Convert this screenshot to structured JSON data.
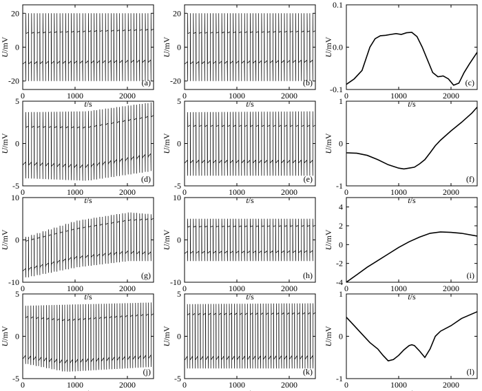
{
  "figure": {
    "x_tick_labels": [
      "0",
      "1000",
      "2000"
    ],
    "xlabel_var": "t",
    "xlabel_unit": "/s",
    "ylabel_var": "U",
    "ylabel_unit": "/mV"
  },
  "chart_data": [
    {
      "id": "a",
      "label": "(a)",
      "type": "line",
      "kind": "spikes",
      "xlim": [
        0,
        2500
      ],
      "ylim": [
        -25,
        25
      ],
      "y_ticks": [
        -20,
        0,
        20
      ],
      "y_tick_labels": [
        "-20",
        "0",
        "20"
      ],
      "series": [
        {
          "name": "U",
          "spike_count": 23,
          "upper_level": [
            [
              0,
              8
            ],
            [
              2500,
              10
            ]
          ],
          "lower_level": [
            [
              0,
              -10
            ],
            [
              2500,
              -9
            ]
          ],
          "peak": [
            [
              0,
              20
            ],
            [
              2500,
              20
            ]
          ],
          "trough": [
            [
              0,
              -20
            ],
            [
              2500,
              -20
            ]
          ]
        }
      ]
    },
    {
      "id": "b",
      "label": "(b)",
      "type": "line",
      "kind": "spikes",
      "xlim": [
        0,
        2500
      ],
      "ylim": [
        -25,
        25
      ],
      "y_ticks": [
        -20,
        0,
        20
      ],
      "y_tick_labels": [
        "-20",
        "0",
        "20"
      ],
      "series": [
        {
          "name": "U",
          "spike_count": 23,
          "upper_level": [
            [
              0,
              8
            ],
            [
              2500,
              9
            ]
          ],
          "lower_level": [
            [
              0,
              -10
            ],
            [
              2500,
              -9
            ]
          ],
          "peak": [
            [
              0,
              20
            ],
            [
              2500,
              20
            ]
          ],
          "trough": [
            [
              0,
              -20
            ],
            [
              2500,
              -20
            ]
          ]
        }
      ]
    },
    {
      "id": "c",
      "label": "(c)",
      "type": "line",
      "kind": "curve",
      "xlim": [
        0,
        2500
      ],
      "ylim": [
        -0.1,
        0.1
      ],
      "y_ticks": [
        -0.1,
        0,
        0.1
      ],
      "y_tick_labels": [
        "-0.1",
        "0.0",
        "0.1"
      ],
      "series": [
        {
          "name": "U",
          "x": [
            0,
            150,
            300,
            450,
            550,
            650,
            750,
            850,
            950,
            1050,
            1150,
            1250,
            1350,
            1450,
            1550,
            1650,
            1750,
            1850,
            1950,
            2050,
            2150,
            2250,
            2350,
            2500
          ],
          "y": [
            -0.088,
            -0.075,
            -0.055,
            0.0,
            0.02,
            0.027,
            0.028,
            0.03,
            0.032,
            0.03,
            0.034,
            0.035,
            0.025,
            0.0,
            -0.03,
            -0.06,
            -0.07,
            -0.068,
            -0.075,
            -0.09,
            -0.085,
            -0.06,
            -0.04,
            -0.012
          ]
        }
      ]
    },
    {
      "id": "d",
      "label": "(d)",
      "type": "line",
      "kind": "spikes",
      "xlim": [
        0,
        2500
      ],
      "ylim": [
        -5,
        5
      ],
      "y_ticks": [
        -5,
        0,
        5
      ],
      "y_tick_labels": [
        "-5",
        "0",
        "5"
      ],
      "series": [
        {
          "name": "U",
          "spike_count": 23,
          "upper_level": [
            [
              0,
              1.9
            ],
            [
              1200,
              1.8
            ],
            [
              2500,
              3.2
            ]
          ],
          "lower_level": [
            [
              0,
              -2.5
            ],
            [
              1200,
              -2.9
            ],
            [
              2500,
              -1.5
            ]
          ],
          "peak": [
            [
              0,
              3.7
            ],
            [
              1200,
              3.8
            ],
            [
              2500,
              4.9
            ]
          ],
          "trough": [
            [
              0,
              -4.1
            ],
            [
              1200,
              -4.4
            ],
            [
              2500,
              -3.2
            ]
          ]
        }
      ]
    },
    {
      "id": "e",
      "label": "(e)",
      "type": "line",
      "kind": "spikes",
      "xlim": [
        0,
        2500
      ],
      "ylim": [
        -5,
        5
      ],
      "y_ticks": [
        -5,
        0,
        5
      ],
      "y_tick_labels": [
        "-5",
        "0",
        "5"
      ],
      "series": [
        {
          "name": "U",
          "spike_count": 23,
          "upper_level": [
            [
              0,
              2.0
            ],
            [
              2500,
              2.0
            ]
          ],
          "lower_level": [
            [
              0,
              -2.3
            ],
            [
              2500,
              -2.3
            ]
          ],
          "peak": [
            [
              0,
              3.7
            ],
            [
              2500,
              3.8
            ]
          ],
          "trough": [
            [
              0,
              -3.8
            ],
            [
              2500,
              -3.8
            ]
          ]
        }
      ]
    },
    {
      "id": "f",
      "label": "(f)",
      "type": "line",
      "kind": "curve",
      "xlim": [
        0,
        2500
      ],
      "ylim": [
        -1,
        1
      ],
      "y_ticks": [
        -1,
        0,
        1
      ],
      "y_tick_labels": [
        "-1",
        "0",
        "1"
      ],
      "series": [
        {
          "name": "U",
          "x": [
            0,
            200,
            400,
            600,
            800,
            1000,
            1100,
            1200,
            1300,
            1400,
            1500,
            1600,
            1700,
            1800,
            2000,
            2200,
            2400,
            2500
          ],
          "y": [
            -0.22,
            -0.23,
            -0.28,
            -0.38,
            -0.5,
            -0.58,
            -0.6,
            -0.58,
            -0.56,
            -0.48,
            -0.38,
            -0.22,
            -0.05,
            0.08,
            0.3,
            0.5,
            0.72,
            0.86
          ]
        }
      ]
    },
    {
      "id": "g",
      "label": "(g)",
      "type": "line",
      "kind": "spikes",
      "xlim": [
        0,
        2500
      ],
      "ylim": [
        -10,
        10
      ],
      "y_ticks": [
        -10,
        0,
        10
      ],
      "y_tick_labels": [
        "-10",
        "0",
        "10"
      ],
      "series": [
        {
          "name": "U",
          "spike_count": 23,
          "upper_level": [
            [
              0,
              -0.5
            ],
            [
              1000,
              2.5
            ],
            [
              2000,
              4.5
            ],
            [
              2500,
              4.8
            ]
          ],
          "lower_level": [
            [
              0,
              -7.5
            ],
            [
              1000,
              -4.5
            ],
            [
              2000,
              -3.2
            ],
            [
              2500,
              -3.5
            ]
          ],
          "peak": [
            [
              0,
              0.5
            ],
            [
              1000,
              4.5
            ],
            [
              2000,
              6.5
            ],
            [
              2500,
              6.0
            ]
          ],
          "trough": [
            [
              0,
              -9.0
            ],
            [
              1000,
              -6.5
            ],
            [
              2000,
              -5.0
            ],
            [
              2500,
              -5.0
            ]
          ]
        }
      ]
    },
    {
      "id": "h",
      "label": "(h)",
      "type": "line",
      "kind": "spikes",
      "xlim": [
        0,
        2500
      ],
      "ylim": [
        -10,
        10
      ],
      "y_ticks": [
        -10,
        0,
        10
      ],
      "y_tick_labels": [
        "-10",
        "0",
        "10"
      ],
      "series": [
        {
          "name": "U",
          "spike_count": 23,
          "upper_level": [
            [
              0,
              3.0
            ],
            [
              2500,
              3.2
            ]
          ],
          "lower_level": [
            [
              0,
              -3.2
            ],
            [
              2500,
              -3.0
            ]
          ],
          "peak": [
            [
              0,
              5.0
            ],
            [
              2500,
              5.0
            ]
          ],
          "trough": [
            [
              0,
              -5.0
            ],
            [
              2500,
              -5.0
            ]
          ]
        }
      ]
    },
    {
      "id": "i",
      "label": "(i)",
      "type": "line",
      "kind": "curve",
      "xlim": [
        0,
        2500
      ],
      "ylim": [
        -4,
        5
      ],
      "y_ticks": [
        -4,
        -2,
        0,
        2,
        4
      ],
      "y_tick_labels": [
        "-4",
        "-2",
        "0",
        "2",
        "4"
      ],
      "series": [
        {
          "name": "U",
          "x": [
            0,
            200,
            400,
            600,
            800,
            1000,
            1200,
            1400,
            1600,
            1800,
            2000,
            2200,
            2500
          ],
          "y": [
            -4.0,
            -3.2,
            -2.4,
            -1.7,
            -1.0,
            -0.3,
            0.3,
            0.8,
            1.2,
            1.35,
            1.3,
            1.2,
            0.9
          ]
        }
      ]
    },
    {
      "id": "j",
      "label": "(j)",
      "type": "line",
      "kind": "spikes",
      "xlim": [
        0,
        2500
      ],
      "ylim": [
        -5,
        5
      ],
      "y_ticks": [
        -5,
        0,
        5
      ],
      "y_tick_labels": [
        "-5",
        "0",
        "5"
      ],
      "series": [
        {
          "name": "U",
          "spike_count": 25,
          "upper_level": [
            [
              0,
              2.2
            ],
            [
              800,
              1.8
            ],
            [
              2500,
              2.5
            ]
          ],
          "lower_level": [
            [
              0,
              -2.6
            ],
            [
              800,
              -3.2
            ],
            [
              2500,
              -2.6
            ]
          ],
          "peak": [
            [
              0,
              3.6
            ],
            [
              2500,
              4.0
            ]
          ],
          "trough": [
            [
              0,
              -3.2
            ],
            [
              800,
              -4.2
            ],
            [
              2500,
              -3.6
            ]
          ]
        }
      ]
    },
    {
      "id": "k",
      "label": "(k)",
      "type": "line",
      "kind": "spikes",
      "xlim": [
        0,
        2500
      ],
      "ylim": [
        -5,
        5
      ],
      "y_ticks": [
        -5,
        0,
        5
      ],
      "y_tick_labels": [
        "-5",
        "0",
        "5"
      ],
      "series": [
        {
          "name": "U",
          "spike_count": 25,
          "upper_level": [
            [
              0,
              2.5
            ],
            [
              2500,
              2.6
            ]
          ],
          "lower_level": [
            [
              0,
              -2.8
            ],
            [
              2500,
              -2.7
            ]
          ],
          "peak": [
            [
              0,
              3.8
            ],
            [
              2500,
              3.9
            ]
          ],
          "trough": [
            [
              0,
              -3.8
            ],
            [
              2500,
              -3.8
            ]
          ]
        }
      ]
    },
    {
      "id": "l",
      "label": "(l)",
      "type": "line",
      "kind": "curve",
      "xlim": [
        0,
        2500
      ],
      "ylim": [
        -1,
        1
      ],
      "y_ticks": [
        -1,
        0,
        1
      ],
      "y_tick_labels": [
        "-1",
        "0",
        "1"
      ],
      "series": [
        {
          "name": "U",
          "x": [
            0,
            150,
            300,
            450,
            600,
            700,
            800,
            900,
            1000,
            1100,
            1200,
            1250,
            1300,
            1400,
            1500,
            1600,
            1700,
            1800,
            2000,
            2200,
            2500
          ],
          "y": [
            0.45,
            0.25,
            0.05,
            -0.15,
            -0.3,
            -0.45,
            -0.58,
            -0.55,
            -0.45,
            -0.32,
            -0.22,
            -0.2,
            -0.22,
            -0.35,
            -0.5,
            -0.3,
            0.0,
            0.12,
            0.25,
            0.42,
            0.58
          ]
        }
      ]
    }
  ]
}
